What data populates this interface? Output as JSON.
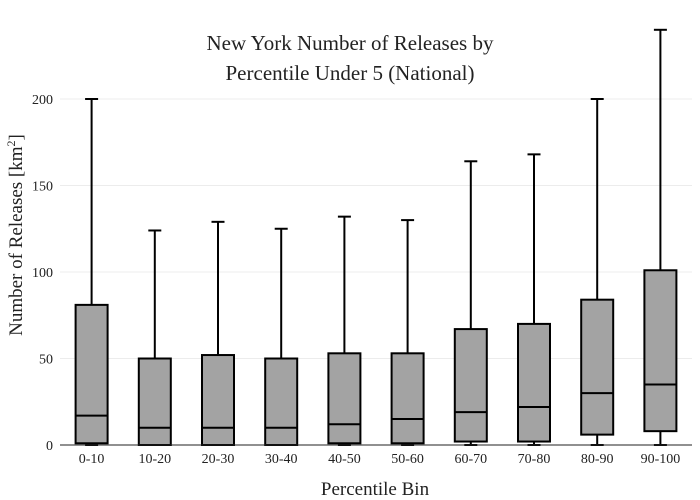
{
  "chart_data": {
    "type": "box",
    "title_lines": [
      "New York Number of Releases by",
      "Percentile Under 5 (National)"
    ],
    "xlabel": "Percentile Bin",
    "ylabel_main": "Number of Releases  [km",
    "ylabel_sup": "2",
    "ylabel_end": "]",
    "ylim": [
      0,
      230
    ],
    "yticks": [
      0,
      50,
      100,
      150,
      200
    ],
    "ytick_labels": [
      "0",
      "50",
      "100",
      "150",
      "200"
    ],
    "grid": true,
    "box_color": "#a3a3a3",
    "categories": [
      "0-10",
      "10-20",
      "20-30",
      "30-40",
      "40-50",
      "50-60",
      "60-70",
      "70-80",
      "80-90",
      "90-100"
    ],
    "boxes": [
      {
        "min": 0,
        "q1": 1,
        "median": 17,
        "q3": 81,
        "max": 200
      },
      {
        "min": 0,
        "q1": 0,
        "median": 10,
        "q3": 50,
        "max": 124
      },
      {
        "min": 0,
        "q1": 0,
        "median": 10,
        "q3": 52,
        "max": 129
      },
      {
        "min": 0,
        "q1": 0,
        "median": 10,
        "q3": 50,
        "max": 125
      },
      {
        "min": 0,
        "q1": 1,
        "median": 12,
        "q3": 53,
        "max": 132
      },
      {
        "min": 0,
        "q1": 1,
        "median": 15,
        "q3": 53,
        "max": 130
      },
      {
        "min": 0,
        "q1": 2,
        "median": 19,
        "q3": 67,
        "max": 164
      },
      {
        "min": 0,
        "q1": 2,
        "median": 22,
        "q3": 70,
        "max": 168
      },
      {
        "min": 0,
        "q1": 6,
        "median": 30,
        "q3": 84,
        "max": 200
      },
      {
        "min": 0,
        "q1": 8,
        "median": 35,
        "q3": 101,
        "max": 240
      }
    ]
  }
}
